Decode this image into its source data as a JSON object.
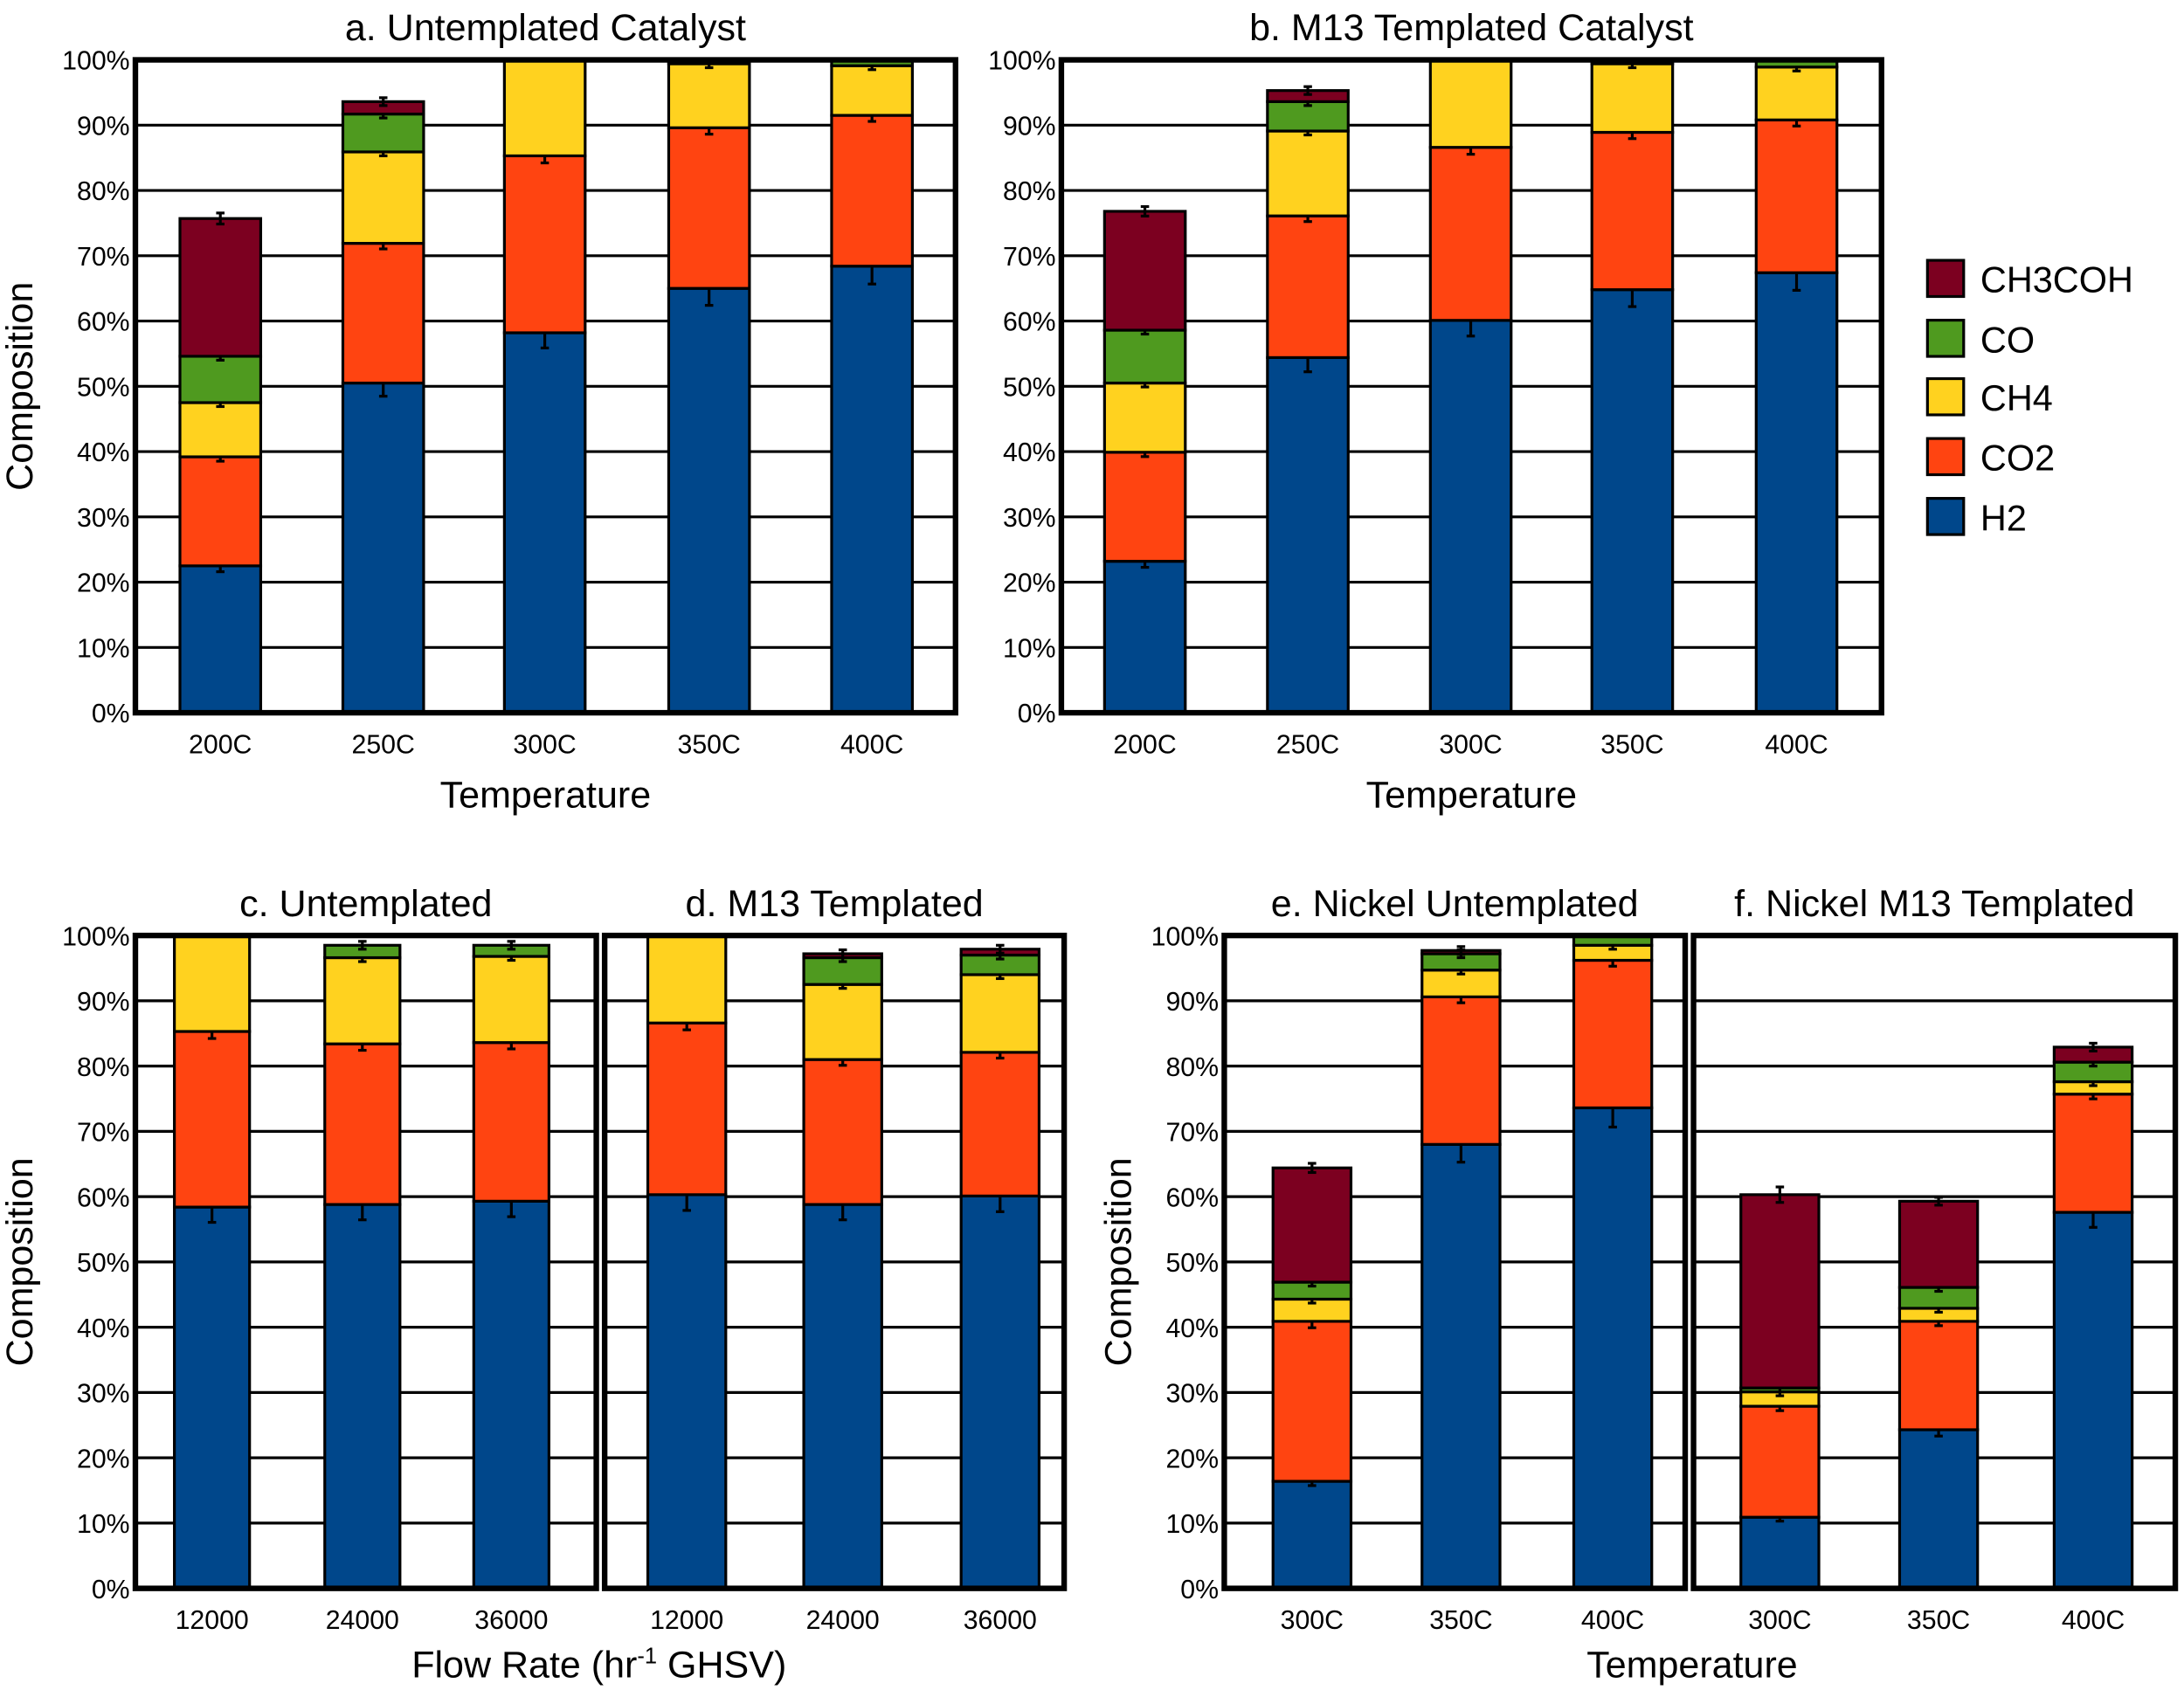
{
  "colors": {
    "H2": "#00478b",
    "CO2": "#ff4411",
    "CH4": "#ffd21f",
    "CO": "#4f9a1f",
    "CH3COH": "#7c0020"
  },
  "legend": [
    "CH3COH",
    "CO",
    "CH4",
    "CO2",
    "H2"
  ],
  "y_ticks": [
    "0%",
    "10%",
    "20%",
    "30%",
    "40%",
    "50%",
    "60%",
    "70%",
    "80%",
    "90%",
    "100%"
  ],
  "chart_data": [
    {
      "type": "bar",
      "stacked": true,
      "title": "a. Untemplated Catalyst",
      "xlabel": "Temperature",
      "ylabel": "Composition",
      "ylim": [
        0,
        100
      ],
      "categories": [
        "200C",
        "250C",
        "300C",
        "350C",
        "400C"
      ],
      "series": [
        {
          "name": "H2",
          "values": [
            22.5,
            50.5,
            58.2,
            65.0,
            68.4
          ]
        },
        {
          "name": "CO2",
          "values": [
            16.7,
            21.4,
            27.1,
            24.6,
            23.1
          ]
        },
        {
          "name": "CH4",
          "values": [
            8.3,
            14.0,
            14.7,
            9.8,
            7.6
          ]
        },
        {
          "name": "CO",
          "values": [
            7.1,
            5.8,
            0,
            0.6,
            0.9
          ]
        },
        {
          "name": "CH3COH",
          "values": [
            21.1,
            1.9,
            0,
            0,
            0
          ]
        }
      ]
    },
    {
      "type": "bar",
      "stacked": true,
      "title": "b. M13 Templated Catalyst",
      "xlabel": "Temperature",
      "ylabel": "",
      "ylim": [
        0,
        100
      ],
      "categories": [
        "200C",
        "250C",
        "300C",
        "350C",
        "400C"
      ],
      "series": [
        {
          "name": "H2",
          "values": [
            23.2,
            54.4,
            60.1,
            64.8,
            67.4
          ]
        },
        {
          "name": "CO2",
          "values": [
            16.7,
            21.7,
            26.5,
            24.1,
            23.4
          ]
        },
        {
          "name": "CH4",
          "values": [
            10.6,
            13.0,
            13.4,
            10.5,
            8.1
          ]
        },
        {
          "name": "CO",
          "values": [
            8.1,
            4.5,
            0,
            0.6,
            1.1
          ]
        },
        {
          "name": "CH3COH",
          "values": [
            18.2,
            1.7,
            0,
            0,
            0
          ]
        }
      ]
    },
    {
      "type": "bar",
      "stacked": true,
      "title": "c. Untemplated",
      "xlabel": "",
      "ylabel": "Composition",
      "ylim": [
        0,
        100
      ],
      "categories": [
        "12000",
        "24000",
        "36000"
      ],
      "series": [
        {
          "name": "H2",
          "values": [
            58.4,
            58.8,
            59.3
          ]
        },
        {
          "name": "CO2",
          "values": [
            26.9,
            24.6,
            24.3
          ]
        },
        {
          "name": "CH4",
          "values": [
            14.7,
            13.2,
            13.2
          ]
        },
        {
          "name": "CO",
          "values": [
            0,
            1.9,
            1.7
          ]
        },
        {
          "name": "CH3COH",
          "values": [
            0,
            0,
            0
          ]
        }
      ]
    },
    {
      "type": "bar",
      "stacked": true,
      "title": "d. M13 Templated",
      "xlabel": "",
      "ylabel": "",
      "ylim": [
        0,
        100
      ],
      "categories": [
        "12000",
        "24000",
        "36000"
      ],
      "series": [
        {
          "name": "H2",
          "values": [
            60.3,
            58.8,
            60.1
          ]
        },
        {
          "name": "CO2",
          "values": [
            26.3,
            22.2,
            22.0
          ]
        },
        {
          "name": "CH4",
          "values": [
            13.4,
            11.5,
            11.9
          ]
        },
        {
          "name": "CO",
          "values": [
            0,
            4.1,
            3.0
          ]
        },
        {
          "name": "CH3COH",
          "values": [
            0,
            0.6,
            0.9
          ]
        }
      ]
    },
    {
      "type": "bar",
      "stacked": true,
      "title": "e. Nickel Untemplated",
      "xlabel": "",
      "ylabel": "Composition",
      "ylim": [
        0,
        100
      ],
      "categories": [
        "300C",
        "350C",
        "400C"
      ],
      "series": [
        {
          "name": "H2",
          "values": [
            16.4,
            68.0,
            73.6
          ]
        },
        {
          "name": "CO2",
          "values": [
            24.5,
            22.6,
            22.6
          ]
        },
        {
          "name": "CH4",
          "values": [
            3.4,
            4.1,
            2.3
          ]
        },
        {
          "name": "CO",
          "values": [
            2.6,
            2.5,
            1.5
          ]
        },
        {
          "name": "CH3COH",
          "values": [
            17.5,
            0.5,
            0
          ]
        }
      ]
    },
    {
      "type": "bar",
      "stacked": true,
      "title": "f. Nickel M13 Templated",
      "xlabel": "",
      "ylabel": "",
      "ylim": [
        0,
        100
      ],
      "categories": [
        "300C",
        "350C",
        "400C"
      ],
      "series": [
        {
          "name": "H2",
          "values": [
            10.9,
            24.3,
            57.6
          ]
        },
        {
          "name": "CO2",
          "values": [
            17.0,
            16.6,
            18.1
          ]
        },
        {
          "name": "CH4",
          "values": [
            2.2,
            2.0,
            1.9
          ]
        },
        {
          "name": "CO",
          "values": [
            0.6,
            3.2,
            3.0
          ]
        },
        {
          "name": "CH3COH",
          "values": [
            29.6,
            13.2,
            2.3
          ]
        }
      ]
    }
  ],
  "shared_labels": {
    "flow_rate_xlabel": "Flow Rate (hr",
    "flow_rate_sup": "-1",
    "flow_rate_suffix": " GHSV)",
    "nickel_xlabel": "Temperature"
  }
}
